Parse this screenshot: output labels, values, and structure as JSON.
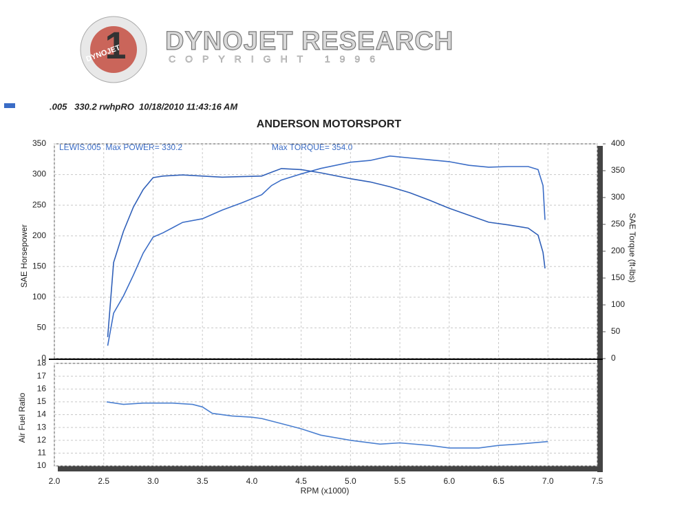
{
  "header": {
    "brand": "DYNOJET RESEARCH",
    "copyright": "COPYRIGHT 1996",
    "logo_number": "1",
    "logo_text": "DYNOJET",
    "run_line": ".005   330.2 rwhpRO  10/18/2010 11:43:16 AM"
  },
  "chart_data": [
    {
      "type": "line",
      "title": "ANDERSON MOTORSPORT",
      "y_label": "SAE Horsepower",
      "y2_label": "SAE Torque (ft-lbs)",
      "annotations": [
        "LEWIS.005  Max POWER= 330.2",
        "Max TORQUE= 354.0"
      ],
      "x": [
        2.54,
        2.6,
        2.7,
        2.8,
        2.9,
        3.0,
        3.1,
        3.3,
        3.5,
        3.7,
        3.9,
        4.1,
        4.2,
        4.3,
        4.5,
        4.7,
        5.0,
        5.2,
        5.4,
        5.6,
        5.8,
        6.0,
        6.2,
        6.4,
        6.6,
        6.8,
        6.9,
        6.95,
        6.97
      ],
      "series": [
        {
          "color": "#3a6cc6",
          "values": [
            21,
            74,
            102,
            136,
            172,
            198,
            205,
            222,
            228,
            242,
            254,
            267,
            282,
            291,
            301,
            310,
            320,
            323,
            330.2,
            327,
            324,
            321,
            315,
            312,
            313,
            313,
            308,
            282,
            226
          ]
        },
        {
          "color": "#2f5fb8",
          "axis": "y2",
          "values": [
            40,
            179,
            237,
            282,
            315,
            337,
            340,
            342,
            340,
            338,
            339,
            340,
            347,
            354,
            352,
            346,
            335,
            329,
            320,
            309,
            295,
            280,
            267,
            254,
            249,
            243,
            230,
            198,
            168
          ]
        }
      ],
      "xlim": [
        2.0,
        7.5
      ],
      "ylim": [
        0,
        350
      ],
      "yticks": [
        0,
        50,
        100,
        150,
        200,
        250,
        300,
        350
      ],
      "y2lim": [
        0,
        400
      ],
      "y2ticks": [
        0,
        50,
        100,
        150,
        200,
        250,
        300,
        350,
        400
      ],
      "grid": true
    },
    {
      "type": "line",
      "y_label": "Air Fuel Ratio",
      "x_label": "RPM (x1000)",
      "x": [
        2.53,
        2.7,
        2.9,
        3.2,
        3.4,
        3.5,
        3.6,
        3.8,
        4.0,
        4.1,
        4.3,
        4.5,
        4.7,
        5.0,
        5.3,
        5.5,
        5.8,
        6.0,
        6.3,
        6.5,
        6.7,
        7.0
      ],
      "series": [
        {
          "color": "#4a7fd0",
          "values": [
            15.0,
            14.8,
            14.9,
            14.9,
            14.8,
            14.6,
            14.1,
            13.9,
            13.8,
            13.7,
            13.3,
            12.9,
            12.4,
            12.0,
            11.7,
            11.8,
            11.6,
            11.4,
            11.4,
            11.6,
            11.7,
            11.9
          ]
        }
      ],
      "xlim": [
        2.0,
        7.5
      ],
      "xticks": [
        {
          "value": 2,
          "label": "2.0"
        },
        2.5,
        {
          "value": 3,
          "label": "3.0"
        },
        3.5,
        {
          "value": 4,
          "label": "4.0"
        },
        4.5,
        {
          "value": 5,
          "label": "5.0"
        },
        5.5,
        {
          "value": 6,
          "label": "6.0"
        },
        6.5,
        {
          "value": 7,
          "label": "7.0"
        },
        7.5
      ],
      "ylim": [
        10,
        18
      ],
      "yticks": [
        10,
        11,
        12,
        13,
        14,
        15,
        16,
        17,
        18
      ],
      "grid": true
    }
  ]
}
